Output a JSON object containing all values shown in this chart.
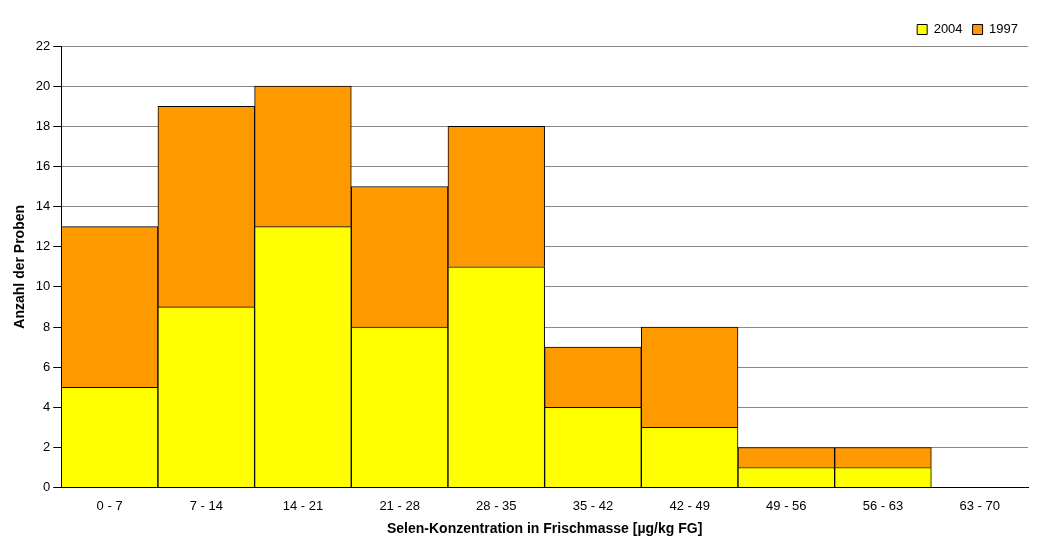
{
  "chart_data": {
    "type": "bar",
    "stacked": true,
    "xlabel": "Selen-Konzentration in Frischmasse [µg/kg FG]",
    "ylabel": "Anzahl der Proben",
    "categories": [
      "0 - 7",
      "7 - 14",
      "14 - 21",
      "21 - 28",
      "28 - 35",
      "35 - 42",
      "42 - 49",
      "49 - 56",
      "56 - 63",
      "63 - 70"
    ],
    "series": [
      {
        "name": "2004",
        "color": "#ffff00",
        "values": [
          5,
          9,
          13,
          8,
          11,
          4,
          3,
          1,
          1,
          0
        ]
      },
      {
        "name": "1997",
        "color": "#ff9900",
        "values": [
          8,
          10,
          7,
          7,
          7,
          3,
          5,
          1,
          1,
          0
        ]
      }
    ],
    "ylim": [
      0,
      22
    ],
    "yticks": [
      0,
      2,
      4,
      6,
      8,
      10,
      12,
      14,
      16,
      18,
      20,
      22
    ],
    "grid": "y",
    "legend": "top right"
  }
}
